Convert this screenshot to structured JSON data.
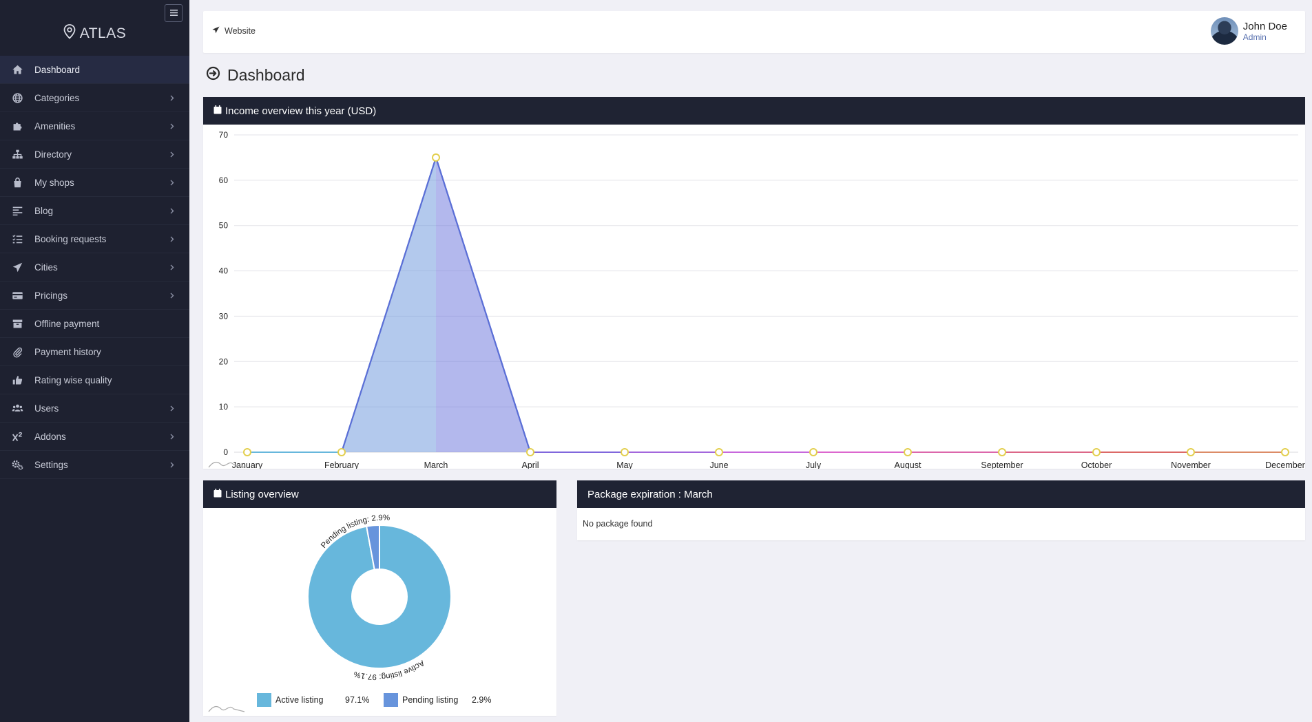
{
  "app": {
    "brand": "ATLAS"
  },
  "sidebar": {
    "items": [
      {
        "label": "Dashboard",
        "icon": "home-icon",
        "active": true,
        "chevron": false
      },
      {
        "label": "Categories",
        "icon": "globe-icon",
        "chevron": true
      },
      {
        "label": "Amenities",
        "icon": "puzzle-icon",
        "chevron": true
      },
      {
        "label": "Directory",
        "icon": "sitemap-icon",
        "chevron": true
      },
      {
        "label": "My shops",
        "icon": "shopping-bag-icon",
        "chevron": true
      },
      {
        "label": "Blog",
        "icon": "align-left-icon",
        "chevron": true
      },
      {
        "label": "Booking requests",
        "icon": "list-check-icon",
        "chevron": true
      },
      {
        "label": "Cities",
        "icon": "paper-plane-icon",
        "chevron": true
      },
      {
        "label": "Pricings",
        "icon": "credit-card-icon",
        "chevron": true
      },
      {
        "label": "Offline payment",
        "icon": "archive-icon",
        "chevron": false
      },
      {
        "label": "Payment history",
        "icon": "paperclip-icon",
        "chevron": false
      },
      {
        "label": "Rating wise quality",
        "icon": "thumbs-up-icon",
        "chevron": false
      },
      {
        "label": "Users",
        "icon": "users-icon",
        "chevron": true
      },
      {
        "label": "Addons",
        "icon": "superscript-icon",
        "chevron": true
      },
      {
        "label": "Settings",
        "icon": "cogs-icon",
        "chevron": true
      }
    ]
  },
  "header": {
    "website_label": "Website",
    "user_name": "John Doe",
    "user_role": "Admin"
  },
  "page": {
    "title": "Dashboard"
  },
  "income_panel": {
    "title": "Income overview this year (USD)"
  },
  "listing_panel": {
    "title": "Listing overview"
  },
  "package_panel": {
    "title": "Package expiration : March",
    "empty_text": "No package found"
  },
  "colors": {
    "sidebar_bg": "#1e2130",
    "panel_header_bg": "#1f2333",
    "line_blue": "#5b6fd6",
    "active_listing": "#67b7dc",
    "pending_listing": "#6794dc"
  },
  "chart_data": [
    {
      "type": "area",
      "title": "Income overview this year (USD)",
      "categories": [
        "January",
        "February",
        "March",
        "April",
        "May",
        "June",
        "July",
        "August",
        "September",
        "October",
        "November",
        "December"
      ],
      "values": [
        0,
        0,
        65,
        0,
        0,
        0,
        0,
        0,
        0,
        0,
        0,
        0
      ],
      "yticks": [
        "0",
        "10",
        "20",
        "30",
        "40",
        "50",
        "60",
        "70"
      ],
      "ylim": [
        0,
        70
      ],
      "grid": true
    },
    {
      "type": "pie",
      "title": "Listing overview",
      "labels": [
        "Active listing",
        "Pending listing"
      ],
      "values": [
        97.1,
        2.9
      ],
      "value_labels": [
        "97.1%",
        "2.9%"
      ],
      "slice_labels": [
        "Active listing: 97.1%",
        "Pending listing: 2.9%"
      ],
      "legend": "bottom"
    }
  ]
}
